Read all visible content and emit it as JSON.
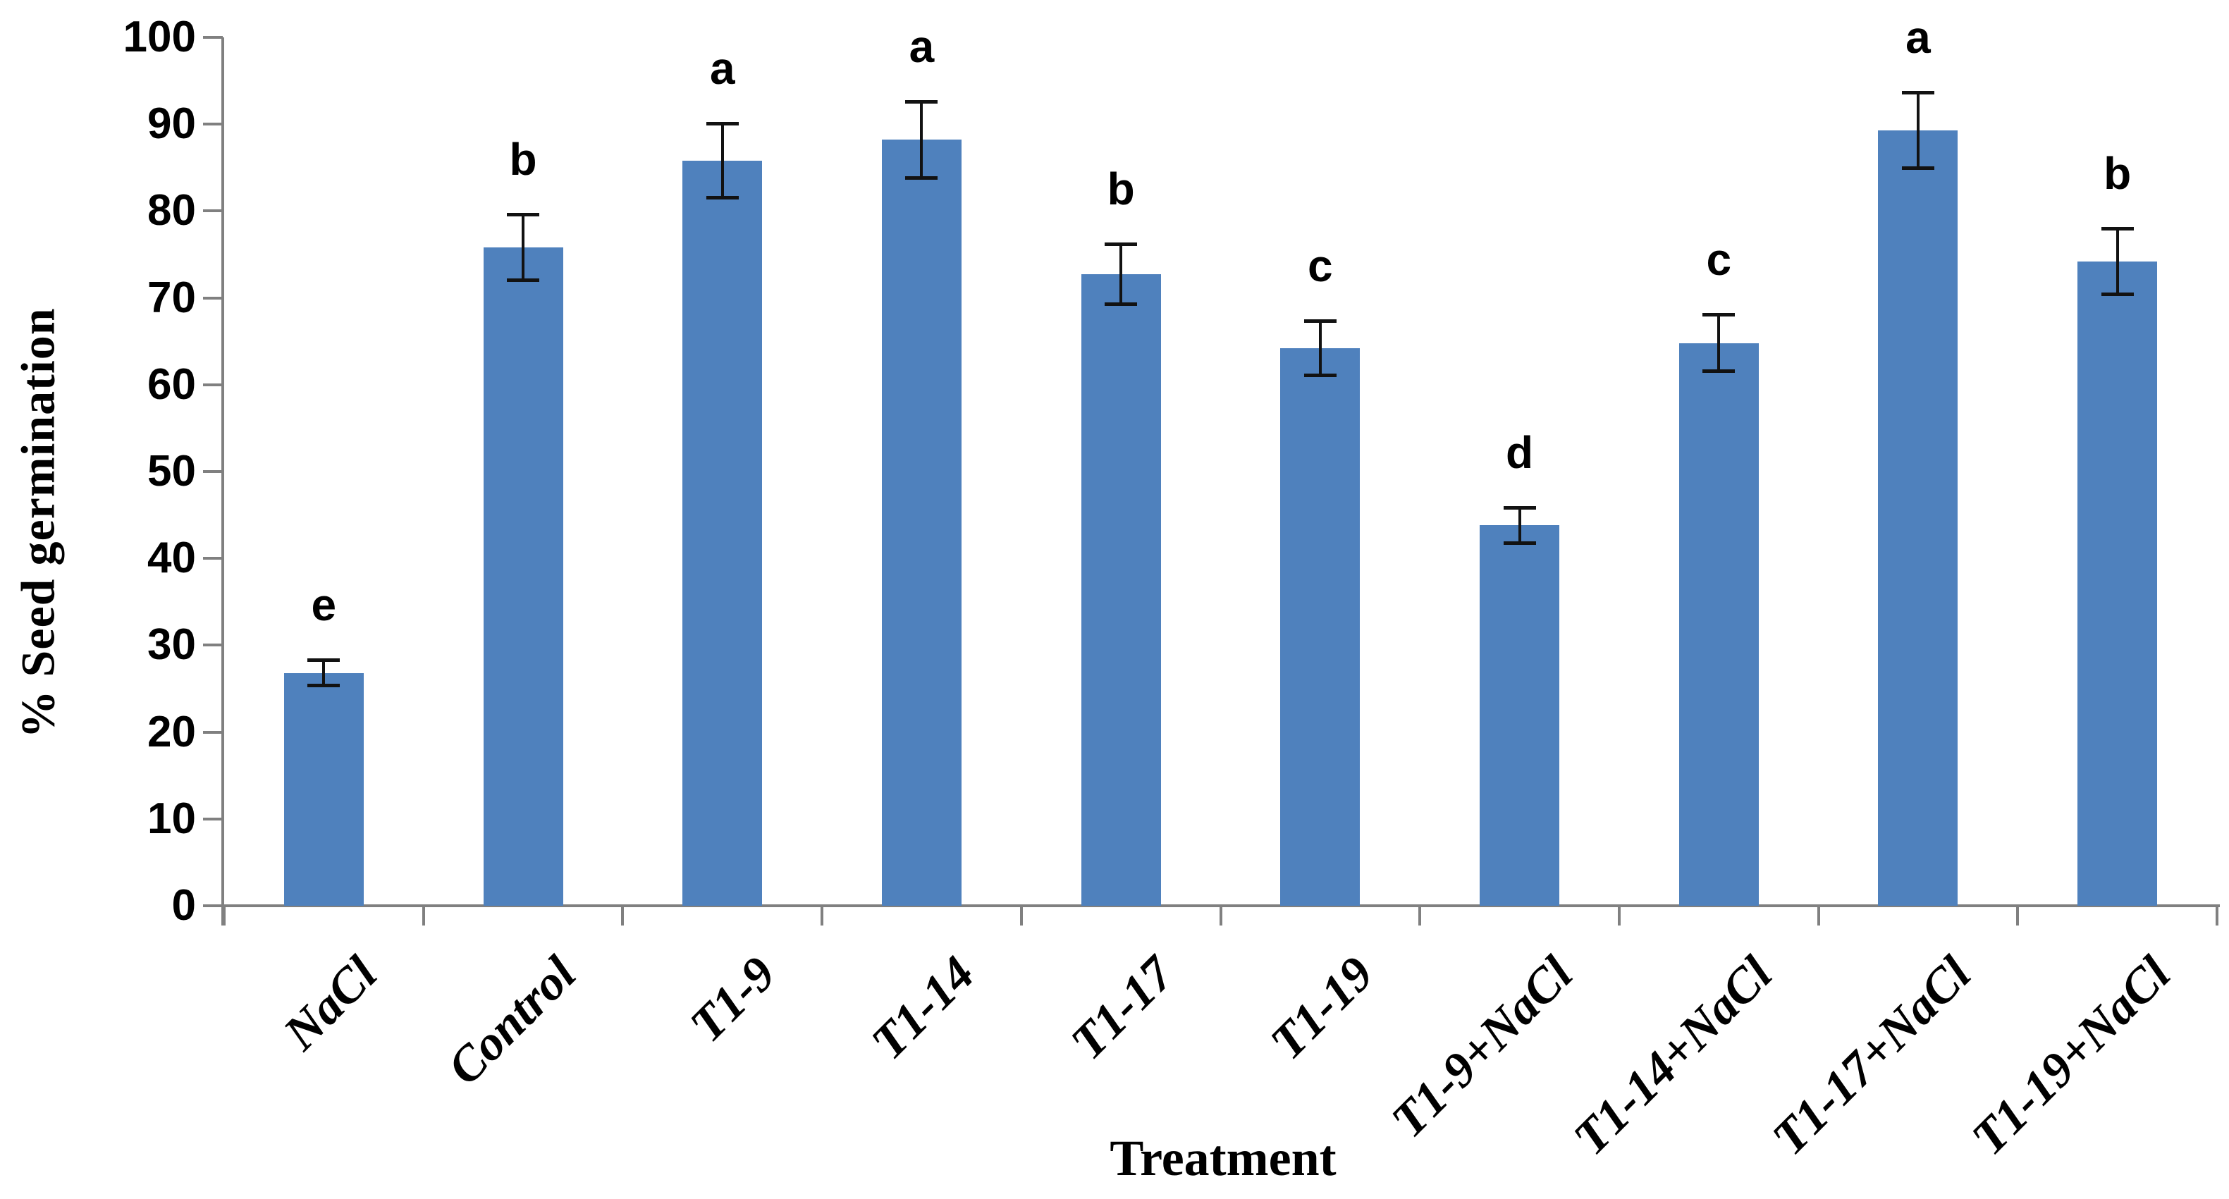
{
  "chart_data": {
    "type": "bar",
    "xlabel": "Treatment",
    "ylabel": "% Seed germination",
    "ylim": [
      0,
      100
    ],
    "ytick_step": 10,
    "yticks": [
      0,
      10,
      20,
      30,
      40,
      50,
      60,
      70,
      80,
      90,
      100
    ],
    "grid": false,
    "legend": false,
    "bar_color": "#4F81BD",
    "axis_color": "#808080",
    "error_bar_color": "#121212",
    "categories": [
      "NaCl",
      "Control",
      "T1-9",
      "T1-14",
      "T1-17",
      "T1-19",
      "T1-9+NaCl",
      "T1-14+NaCl",
      "T1-17+NaCl",
      "T1-19+NaCl"
    ],
    "series": [
      {
        "name": "% Seed germination",
        "values": [
          26.8,
          75.8,
          85.8,
          88.2,
          72.7,
          64.2,
          43.8,
          64.8,
          89.3,
          74.2
        ]
      }
    ],
    "error_bars": [
      1.5,
      3.8,
      4.3,
      4.4,
      3.5,
      3.2,
      2.1,
      3.3,
      4.4,
      3.8
    ],
    "significance_letters": [
      "e",
      "b",
      "a",
      "a",
      "b",
      "c",
      "d",
      "c",
      "a",
      "b"
    ]
  }
}
